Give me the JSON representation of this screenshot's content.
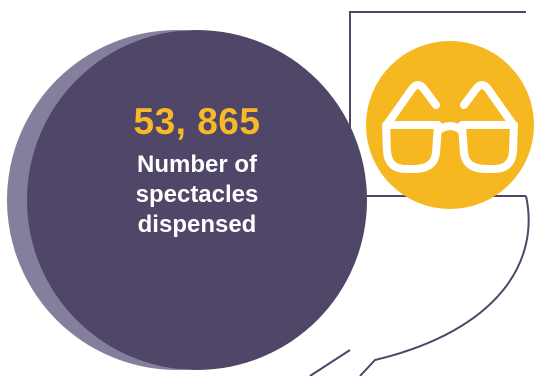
{
  "stat": {
    "value": "53, 865",
    "label_lines": [
      "Number of",
      "spectacles",
      "dispensed"
    ]
  },
  "icon": {
    "name": "glasses-icon",
    "badge_color": "#f6b821"
  },
  "colors": {
    "circle_main": "#4f4668",
    "circle_shadow": "#837f9c",
    "value_color": "#f7b92a",
    "label_color": "#ffffff",
    "frame_line": "#4f4668"
  }
}
